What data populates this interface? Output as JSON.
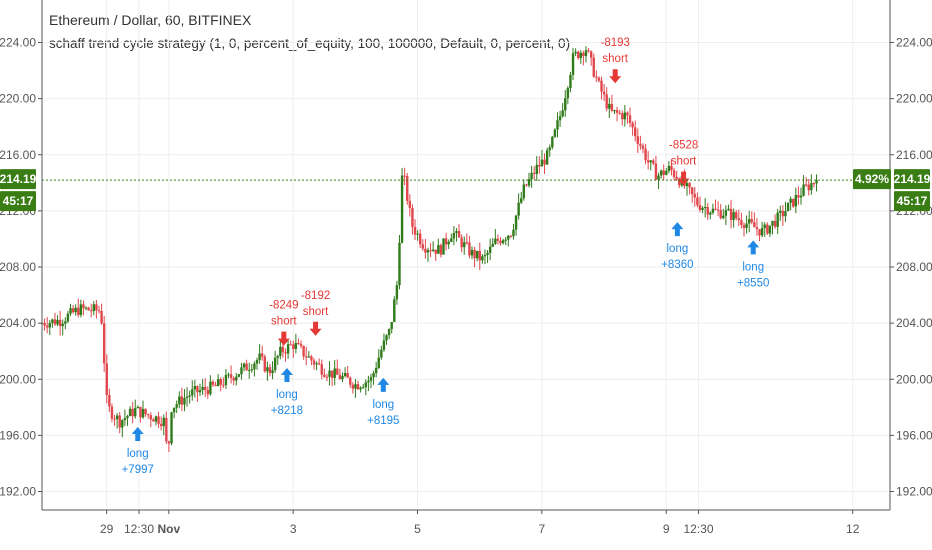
{
  "title": "Ethereum / Dollar, 60, BITFINEX",
  "subtitle": "schaff trend cycle strategy (1, 0, percent_of_equity, 100, 100000, Default, 0, percent, 0)",
  "colors": {
    "up": "#2f7a1b",
    "down": "#e0464b",
    "long": "#1e88e5",
    "short": "#e53935",
    "tag": "#3a7d14",
    "grid": "#eeeeee",
    "axis": "#555555"
  },
  "chart_data": {
    "type": "candlestick",
    "title": "Ethereum / Dollar, 60, BITFINEX",
    "y_ticks": [
      "192.00",
      "196.00",
      "200.00",
      "204.00",
      "208.00",
      "212.00",
      "216.00",
      "220.00",
      "224.00"
    ],
    "ylim": [
      191.0,
      227.0
    ],
    "x_ticks": [
      {
        "label": "29",
        "day": 29.0
      },
      {
        "label": "12:30",
        "day": 29.52
      },
      {
        "label": "Nov",
        "day": 30.0
      },
      {
        "label": "3",
        "day": 32.0
      },
      {
        "label": "5",
        "day": 34.0
      },
      {
        "label": "7",
        "day": 36.0
      },
      {
        "label": "9",
        "day": 38.0
      },
      {
        "label": "12:30",
        "day": 38.52
      },
      {
        "label": "12",
        "day": 41.0
      }
    ],
    "x_range_days": [
      27.96,
      41.6
    ],
    "last_price": "214.19",
    "last_price_value": 214.19,
    "price_change": "4.92%",
    "countdown": "45:17",
    "price_path": [
      [
        27.96,
        204.0
      ],
      [
        28.3,
        204.2
      ],
      [
        28.6,
        205.0
      ],
      [
        28.95,
        204.9
      ],
      [
        29.05,
        198.0
      ],
      [
        29.25,
        197.0
      ],
      [
        29.5,
        197.8
      ],
      [
        29.8,
        197.3
      ],
      [
        29.98,
        197.0
      ],
      [
        30.02,
        194.0
      ],
      [
        30.08,
        198.0
      ],
      [
        30.4,
        199.0
      ],
      [
        30.8,
        199.5
      ],
      [
        31.2,
        200.6
      ],
      [
        31.5,
        201.5
      ],
      [
        31.65,
        200.5
      ],
      [
        31.85,
        202.0
      ],
      [
        32.05,
        202.5
      ],
      [
        32.3,
        201.5
      ],
      [
        32.55,
        200.6
      ],
      [
        32.9,
        200.0
      ],
      [
        33.05,
        199.6
      ],
      [
        33.3,
        200.0
      ],
      [
        33.45,
        202.0
      ],
      [
        33.6,
        203.5
      ],
      [
        33.72,
        207.0
      ],
      [
        33.8,
        215.0
      ],
      [
        33.95,
        211.0
      ],
      [
        34.15,
        209.5
      ],
      [
        34.4,
        209.2
      ],
      [
        34.6,
        210.5
      ],
      [
        34.9,
        209.0
      ],
      [
        35.1,
        208.5
      ],
      [
        35.3,
        209.8
      ],
      [
        35.55,
        210.5
      ],
      [
        35.75,
        213.5
      ],
      [
        35.95,
        215.0
      ],
      [
        36.15,
        216.0
      ],
      [
        36.35,
        219.0
      ],
      [
        36.55,
        223.0
      ],
      [
        36.75,
        223.6
      ],
      [
        36.95,
        221.0
      ],
      [
        37.15,
        219.0
      ],
      [
        37.4,
        218.8
      ],
      [
        37.6,
        217.0
      ],
      [
        37.75,
        215.5
      ],
      [
        37.9,
        214.5
      ],
      [
        38.1,
        215.0
      ],
      [
        38.3,
        214.0
      ],
      [
        38.55,
        212.5
      ],
      [
        38.8,
        212.0
      ],
      [
        39.05,
        211.8
      ],
      [
        39.3,
        211.2
      ],
      [
        39.6,
        210.5
      ],
      [
        39.85,
        211.5
      ],
      [
        40.05,
        212.5
      ],
      [
        40.25,
        213.5
      ],
      [
        40.45,
        214.19
      ]
    ],
    "signals": [
      {
        "type": "long",
        "day": 29.5,
        "value": 196.6,
        "label": "long",
        "pnl": "+7997"
      },
      {
        "type": "short",
        "day": 31.85,
        "value": 202.4,
        "label": "short",
        "pnl": "-8249"
      },
      {
        "type": "long",
        "day": 31.9,
        "value": 200.8,
        "label": "long",
        "pnl": "+8218"
      },
      {
        "type": "short",
        "day": 32.36,
        "value": 203.1,
        "label": "short",
        "pnl": "-8192"
      },
      {
        "type": "long",
        "day": 33.45,
        "value": 200.1,
        "label": "long",
        "pnl": "+8195"
      },
      {
        "type": "short",
        "day": 37.18,
        "value": 221.1,
        "label": "short",
        "pnl": "-8193"
      },
      {
        "type": "short",
        "day": 38.28,
        "value": 213.8,
        "label": "short",
        "pnl": "-8528"
      },
      {
        "type": "long",
        "day": 38.18,
        "value": 211.2,
        "label": "long",
        "pnl": "+8360"
      },
      {
        "type": "long",
        "day": 39.4,
        "value": 209.9,
        "label": "long",
        "pnl": "+8550"
      }
    ],
    "grid": true
  }
}
